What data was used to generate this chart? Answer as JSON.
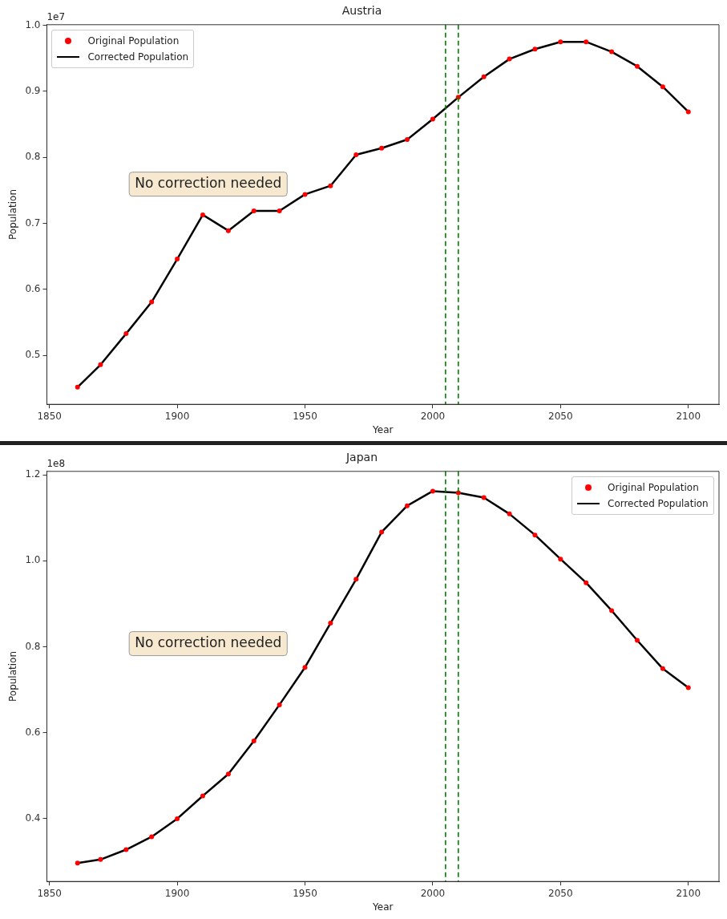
{
  "chart_data": [
    {
      "type": "line",
      "title": "Austria",
      "xlabel": "Year",
      "ylabel": "Population",
      "x": [
        1861,
        1870,
        1880,
        1890,
        1900,
        1910,
        1920,
        1930,
        1940,
        1950,
        1960,
        1970,
        1980,
        1990,
        2000,
        2010,
        2020,
        2030,
        2040,
        2050,
        2060,
        2070,
        2080,
        2090,
        2100
      ],
      "xlim": [
        1849,
        2112
      ],
      "xticks": [
        1850,
        1900,
        1950,
        2000,
        2050,
        2100
      ],
      "ylim": [
        0.426,
        1.001
      ],
      "yticks": [
        0.5,
        0.6,
        0.7,
        0.8,
        0.9,
        {
          "value": 1,
          "label": "1.0"
        }
      ],
      "grid": false,
      "legend": "top left",
      "series": [
        {
          "name": "Original Population",
          "type": "scatter",
          "marker": "circle",
          "color": "#ff0000",
          "values": [
            0.452,
            0.486,
            0.533,
            0.581,
            0.646,
            0.713,
            0.689,
            0.719,
            0.719,
            0.744,
            0.757,
            0.804,
            0.814,
            0.827,
            0.858,
            0.891,
            0.922,
            0.949,
            0.964,
            0.975,
            0.975,
            0.96,
            0.938,
            0.907,
            0.869
          ]
        },
        {
          "name": "Corrected Population",
          "type": "line",
          "color": "#000000",
          "values": [
            0.452,
            0.486,
            0.533,
            0.581,
            0.646,
            0.713,
            0.689,
            0.719,
            0.719,
            0.744,
            0.757,
            0.804,
            0.814,
            0.827,
            0.858,
            0.891,
            0.922,
            0.949,
            0.964,
            0.975,
            0.975,
            0.96,
            0.938,
            0.907,
            0.869
          ]
        }
      ],
      "ref_lines": [
        {
          "axis": "x",
          "value": 2005,
          "color": "#008000",
          "line_style": "dashed"
        },
        {
          "axis": "x",
          "value": 2010,
          "color": "#008000",
          "line_style": "dashed"
        }
      ],
      "annotations": [
        "1e7",
        "No correction needed"
      ]
    },
    {
      "type": "line",
      "title": "Japan",
      "xlabel": "Year",
      "ylabel": "Population",
      "x": [
        1861,
        1870,
        1880,
        1890,
        1900,
        1910,
        1920,
        1930,
        1940,
        1950,
        1960,
        1970,
        1980,
        1990,
        2000,
        2010,
        2020,
        2030,
        2040,
        2050,
        2060,
        2070,
        2080,
        2090,
        2100
      ],
      "xlim": [
        1849,
        2112
      ],
      "xticks": [
        1850,
        1900,
        1950,
        2000,
        2050,
        2100
      ],
      "ylim": [
        0.254,
        1.208
      ],
      "yticks": [
        0.4,
        0.6,
        0.8,
        {
          "value": 1,
          "label": "1.0"
        },
        1.2
      ],
      "grid": false,
      "legend": "top right",
      "series": [
        {
          "name": "Original Population",
          "type": "scatter",
          "marker": "circle",
          "color": "#ff0000",
          "values": [
            0.297,
            0.305,
            0.328,
            0.358,
            0.4,
            0.453,
            0.504,
            0.581,
            0.665,
            0.752,
            0.855,
            0.957,
            1.067,
            1.128,
            1.162,
            1.158,
            1.147,
            1.109,
            1.06,
            1.004,
            0.949,
            0.884,
            0.815,
            0.749,
            0.705
          ]
        },
        {
          "name": "Corrected Population",
          "type": "line",
          "color": "#000000",
          "values": [
            0.297,
            0.305,
            0.328,
            0.358,
            0.4,
            0.453,
            0.504,
            0.581,
            0.665,
            0.752,
            0.855,
            0.957,
            1.067,
            1.128,
            1.162,
            1.158,
            1.147,
            1.109,
            1.06,
            1.004,
            0.949,
            0.884,
            0.815,
            0.749,
            0.705
          ]
        }
      ],
      "ref_lines": [
        {
          "axis": "x",
          "value": 2005,
          "color": "#008000",
          "line_style": "dashed"
        },
        {
          "axis": "x",
          "value": 2010,
          "color": "#008000",
          "line_style": "dashed"
        }
      ],
      "annotations": [
        "1e8",
        "No correction needed"
      ]
    }
  ]
}
